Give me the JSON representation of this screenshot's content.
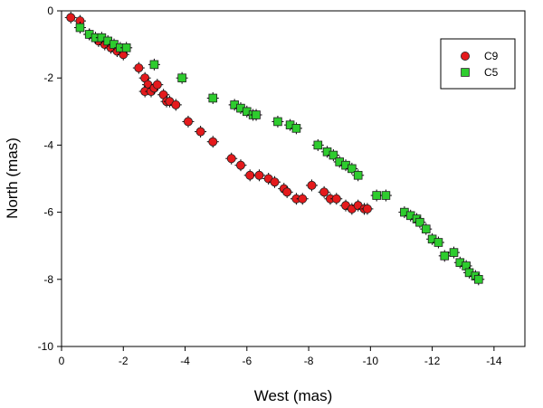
{
  "chart_data": {
    "type": "scatter",
    "title": "",
    "xlabel": "West (mas)",
    "ylabel": "North (mas)",
    "xlim": [
      0,
      -15
    ],
    "ylim": [
      -10,
      0
    ],
    "xticks": [
      0,
      -2,
      -4,
      -6,
      -8,
      -10,
      -12,
      -14
    ],
    "yticks": [
      0,
      -2,
      -4,
      -6,
      -8,
      -10
    ],
    "grid": false,
    "legend_position": "top-right",
    "series": [
      {
        "name": "C9",
        "marker": "circle",
        "color": "#e41a1c",
        "points": [
          [
            -0.3,
            -0.2
          ],
          [
            -0.6,
            -0.3
          ],
          [
            -0.9,
            -0.7
          ],
          [
            -1.2,
            -0.9
          ],
          [
            -1.4,
            -1.0
          ],
          [
            -1.6,
            -1.1
          ],
          [
            -1.8,
            -1.2
          ],
          [
            -2.0,
            -1.3
          ],
          [
            -2.5,
            -1.7
          ],
          [
            -2.7,
            -2.0
          ],
          [
            -2.8,
            -2.2
          ],
          [
            -2.7,
            -2.4
          ],
          [
            -2.9,
            -2.4
          ],
          [
            -3.0,
            -2.3
          ],
          [
            -3.1,
            -2.2
          ],
          [
            -3.3,
            -2.5
          ],
          [
            -3.4,
            -2.7
          ],
          [
            -3.5,
            -2.7
          ],
          [
            -3.7,
            -2.8
          ],
          [
            -4.1,
            -3.3
          ],
          [
            -4.5,
            -3.6
          ],
          [
            -4.9,
            -3.9
          ],
          [
            -5.5,
            -4.4
          ],
          [
            -5.8,
            -4.6
          ],
          [
            -6.1,
            -4.9
          ],
          [
            -6.4,
            -4.9
          ],
          [
            -6.7,
            -5.0
          ],
          [
            -6.9,
            -5.1
          ],
          [
            -7.2,
            -5.3
          ],
          [
            -7.3,
            -5.4
          ],
          [
            -7.6,
            -5.6
          ],
          [
            -7.8,
            -5.6
          ],
          [
            -8.1,
            -5.2
          ],
          [
            -8.5,
            -5.4
          ],
          [
            -8.7,
            -5.6
          ],
          [
            -8.9,
            -5.6
          ],
          [
            -9.2,
            -5.8
          ],
          [
            -9.4,
            -5.9
          ],
          [
            -9.6,
            -5.8
          ],
          [
            -9.8,
            -5.9
          ],
          [
            -9.9,
            -5.9
          ]
        ]
      },
      {
        "name": "C5",
        "marker": "square",
        "color": "#2ecc2e",
        "points": [
          [
            -0.6,
            -0.5
          ],
          [
            -0.9,
            -0.7
          ],
          [
            -1.1,
            -0.8
          ],
          [
            -1.3,
            -0.8
          ],
          [
            -1.5,
            -0.9
          ],
          [
            -1.7,
            -1.0
          ],
          [
            -1.9,
            -1.1
          ],
          [
            -2.1,
            -1.1
          ],
          [
            -3.0,
            -1.6
          ],
          [
            -3.9,
            -2.0
          ],
          [
            -4.9,
            -2.6
          ],
          [
            -5.6,
            -2.8
          ],
          [
            -5.8,
            -2.9
          ],
          [
            -6.0,
            -3.0
          ],
          [
            -6.2,
            -3.1
          ],
          [
            -6.3,
            -3.1
          ],
          [
            -7.0,
            -3.3
          ],
          [
            -7.4,
            -3.4
          ],
          [
            -7.6,
            -3.5
          ],
          [
            -8.3,
            -4.0
          ],
          [
            -8.6,
            -4.2
          ],
          [
            -8.8,
            -4.3
          ],
          [
            -9.0,
            -4.5
          ],
          [
            -9.2,
            -4.6
          ],
          [
            -9.4,
            -4.7
          ],
          [
            -9.6,
            -4.9
          ],
          [
            -10.2,
            -5.5
          ],
          [
            -10.5,
            -5.5
          ],
          [
            -11.1,
            -6.0
          ],
          [
            -11.3,
            -6.1
          ],
          [
            -11.5,
            -6.2
          ],
          [
            -11.6,
            -6.3
          ],
          [
            -11.8,
            -6.5
          ],
          [
            -12.0,
            -6.8
          ],
          [
            -12.2,
            -6.9
          ],
          [
            -12.4,
            -7.3
          ],
          [
            -12.7,
            -7.2
          ],
          [
            -12.9,
            -7.5
          ],
          [
            -13.1,
            -7.6
          ],
          [
            -13.2,
            -7.8
          ],
          [
            -13.4,
            -7.9
          ],
          [
            -13.5,
            -8.0
          ]
        ]
      }
    ]
  }
}
